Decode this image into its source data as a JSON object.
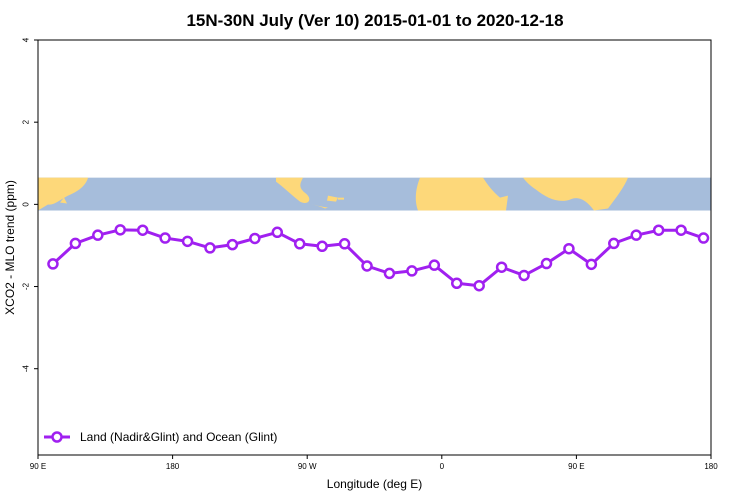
{
  "chart_data": {
    "type": "line",
    "title": "15N-30N July (Ver 10)   2015-01-01 to 2020-12-18",
    "xlabel": "Longitude (deg E)",
    "ylabel": "XCO2 - MLO trend (ppm)",
    "xlim": [
      90,
      480
    ],
    "ylim": [
      -6.1,
      4
    ],
    "x_ticks": [
      {
        "value": 90,
        "label": "90 E"
      },
      {
        "value": 180,
        "label": "180"
      },
      {
        "value": 270,
        "label": "90 W"
      },
      {
        "value": 360,
        "label": "0"
      },
      {
        "value": 450,
        "label": "90 E"
      },
      {
        "value": 540,
        "label": "180"
      }
    ],
    "y_ticks": [
      {
        "value": 4,
        "label": "4"
      },
      {
        "value": 2,
        "label": "2"
      },
      {
        "value": 0,
        "label": "0"
      },
      {
        "value": -2,
        "label": "-2"
      },
      {
        "value": -4,
        "label": "-4"
      }
    ],
    "grid": false,
    "legend_position": "bottom-left",
    "background_map": {
      "longitude_range": "90 E to 90 E (two 180 repeats)",
      "ocean_color": "#a6bddb",
      "land_color": "#fdd87a",
      "y_range": [
        -0.15,
        0.65
      ]
    },
    "series": [
      {
        "name": "Land (Nadir&Glint) and Ocean (Glint)",
        "color": "#a020f0",
        "marker": "open-circle",
        "x": [
          100,
          115,
          130,
          145,
          160,
          175,
          190,
          205,
          220,
          235,
          250,
          265,
          280,
          295,
          310,
          325,
          340,
          355,
          370,
          385,
          400,
          415,
          430,
          445,
          460,
          475,
          490,
          505,
          520,
          535
        ],
        "y": [
          -1.45,
          -0.95,
          -0.75,
          -0.62,
          -0.63,
          -0.82,
          -0.9,
          -1.06,
          -0.98,
          -0.83,
          -0.68,
          -0.96,
          -1.02,
          -0.96,
          -1.5,
          -1.68,
          -1.62,
          -1.48,
          -1.92,
          -1.98,
          -1.53,
          -1.73,
          -1.44,
          -1.08,
          -1.46,
          -0.95,
          -0.75,
          -0.63,
          -0.63,
          -0.82
        ]
      }
    ]
  }
}
